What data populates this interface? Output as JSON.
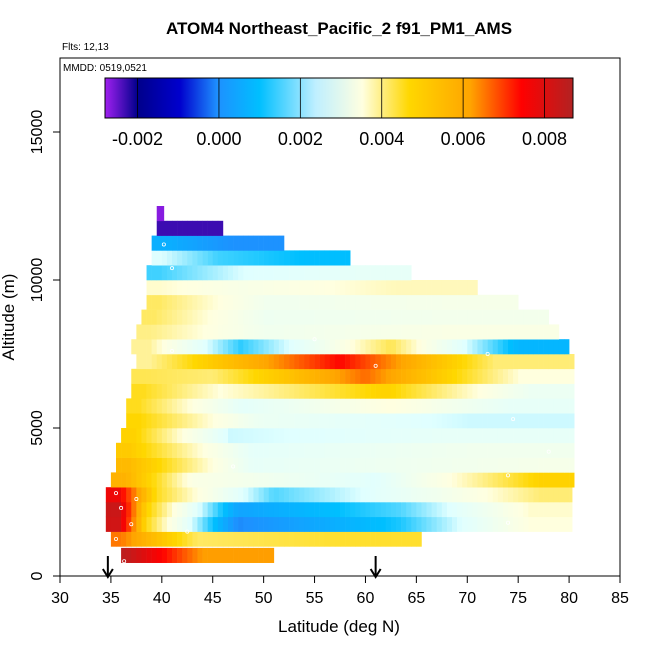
{
  "chart_data": {
    "type": "heatmap",
    "title": "ATOM4 Northeast_Pacific_2 f91_PM1_AMS",
    "flights_label": "Flts: 12,13",
    "dates_label": "MMDD: 0519,0521",
    "xlabel": "Latitude (deg N)",
    "ylabel": "Altitude (m)",
    "xlim": [
      30,
      85
    ],
    "ylim": [
      0,
      17500
    ],
    "x_ticks": [
      "30",
      "35",
      "40",
      "45",
      "50",
      "55",
      "60",
      "65",
      "70",
      "75",
      "80",
      "85"
    ],
    "y_ticks": [
      "0",
      "5000",
      "10000",
      "15000"
    ],
    "colorbar": {
      "min": -0.0028,
      "max": 0.0087,
      "tick_values": [
        -0.002,
        0.0,
        0.002,
        0.004,
        0.006,
        0.008
      ],
      "tick_labels": [
        "-0.002",
        "0.000",
        "0.002",
        "0.004",
        "0.006",
        "0.008"
      ],
      "colors": [
        "#a020f0",
        "#00008b",
        "#1e90ff",
        "#00bfff",
        "#e0ffff",
        "#ffffe0",
        "#ffd700",
        "#ffa500",
        "#ff0000",
        "#b22222"
      ]
    },
    "arrow_latitudes": [
      34.7,
      61.0
    ],
    "layers": [
      {
        "alt": 700,
        "segments": [
          [
            36.0,
            37.0,
            0.0085
          ],
          [
            37.0,
            51.0,
            0.0062
          ]
        ]
      },
      {
        "alt": 1250,
        "segments": [
          [
            35.0,
            37.0,
            0.0065
          ],
          [
            37.0,
            50.0,
            0.0043
          ],
          [
            50.0,
            65.5,
            0.0046
          ]
        ]
      },
      {
        "alt": 1750,
        "segments": [
          [
            34.5,
            37.0,
            0.0082
          ],
          [
            37.0,
            40.0,
            0.0048
          ],
          [
            40.0,
            55.0,
            -0.0003
          ],
          [
            55.0,
            72.0,
            0.0012
          ],
          [
            72.0,
            80.3,
            0.0036
          ]
        ]
      },
      {
        "alt": 2250,
        "segments": [
          [
            34.5,
            37.0,
            0.0083
          ],
          [
            37.0,
            40.0,
            0.005
          ],
          [
            40.0,
            55.0,
            0.0003
          ],
          [
            55.0,
            72.0,
            0.0015
          ],
          [
            72.0,
            80.3,
            0.0037
          ]
        ]
      },
      {
        "alt": 2750,
        "segments": [
          [
            34.5,
            37.0,
            0.0077
          ],
          [
            37.0,
            42.0,
            0.0047
          ],
          [
            42.0,
            60.0,
            0.0015
          ],
          [
            60.0,
            74.0,
            0.003
          ],
          [
            74.0,
            80.3,
            0.0042
          ]
        ]
      },
      {
        "alt": 3250,
        "segments": [
          [
            35.0,
            38.0,
            0.0058
          ],
          [
            38.0,
            48.0,
            0.0034
          ],
          [
            48.0,
            74.0,
            0.0024
          ],
          [
            74.0,
            80.5,
            0.005
          ]
        ]
      },
      {
        "alt": 3750,
        "segments": [
          [
            35.5,
            38.0,
            0.0056
          ],
          [
            38.0,
            60.0,
            0.0026
          ],
          [
            60.0,
            74.0,
            0.003
          ],
          [
            74.0,
            80.5,
            0.0032
          ]
        ]
      },
      {
        "alt": 4250,
        "segments": [
          [
            35.5,
            38.0,
            0.0052
          ],
          [
            38.0,
            60.0,
            0.0025
          ],
          [
            60.0,
            80.5,
            0.003
          ]
        ]
      },
      {
        "alt": 4750,
        "segments": [
          [
            36.0,
            38.5,
            0.005
          ],
          [
            38.5,
            55.0,
            0.0022
          ],
          [
            55.0,
            80.5,
            0.0026
          ]
        ]
      },
      {
        "alt": 5250,
        "segments": [
          [
            36.5,
            39.0,
            0.0049
          ],
          [
            39.0,
            60.0,
            0.0028
          ],
          [
            60.0,
            80.5,
            0.0022
          ]
        ]
      },
      {
        "alt": 5750,
        "segments": [
          [
            36.5,
            39.0,
            0.0047
          ],
          [
            39.0,
            57.0,
            0.0025
          ],
          [
            57.0,
            68.0,
            0.0036
          ],
          [
            68.0,
            80.5,
            0.0026
          ]
        ]
      },
      {
        "alt": 6250,
        "segments": [
          [
            37.0,
            39.5,
            0.0047
          ],
          [
            39.5,
            52.0,
            0.0036
          ],
          [
            52.0,
            72.0,
            0.005
          ],
          [
            72.0,
            80.5,
            0.0028
          ]
        ]
      },
      {
        "alt": 6750,
        "segments": [
          [
            37.0,
            40.0,
            0.0044
          ],
          [
            40.0,
            50.0,
            0.0042
          ],
          [
            50.0,
            70.0,
            0.0066
          ],
          [
            70.0,
            80.5,
            0.0036
          ]
        ]
      },
      {
        "alt": 7250,
        "segments": [
          [
            37.5,
            40.0,
            0.004
          ],
          [
            40.0,
            50.0,
            0.0052
          ],
          [
            50.0,
            65.0,
            0.0074
          ],
          [
            65.0,
            80.5,
            0.0042
          ]
        ]
      },
      {
        "alt": 7750,
        "segments": [
          [
            37.0,
            40.5,
            0.004
          ],
          [
            40.5,
            55.0,
            0.0013
          ],
          [
            55.0,
            70.0,
            0.0044
          ],
          [
            70.0,
            80.0,
            0.0008
          ]
        ]
      },
      {
        "alt": 8250,
        "segments": [
          [
            37.5,
            40.5,
            0.0041
          ],
          [
            40.5,
            60.0,
            0.003
          ],
          [
            60.0,
            79.0,
            0.0034
          ]
        ]
      },
      {
        "alt": 8750,
        "segments": [
          [
            38.0,
            40.5,
            0.0043
          ],
          [
            40.5,
            60.0,
            0.0029
          ],
          [
            60.0,
            78.0,
            0.0031
          ]
        ]
      },
      {
        "alt": 9250,
        "segments": [
          [
            38.5,
            41.0,
            0.0043
          ],
          [
            41.0,
            60.0,
            0.003
          ],
          [
            60.0,
            75.0,
            0.0032
          ]
        ]
      },
      {
        "alt": 9750,
        "segments": [
          [
            38.5,
            41.0,
            0.0037
          ],
          [
            41.0,
            55.0,
            0.0033
          ],
          [
            55.0,
            71.0,
            0.0038
          ]
        ]
      },
      {
        "alt": 10250,
        "segments": [
          [
            38.5,
            41.0,
            0.0014
          ],
          [
            41.0,
            55.0,
            0.0023
          ],
          [
            55.0,
            64.5,
            0.0026
          ]
        ]
      },
      {
        "alt": 10750,
        "segments": [
          [
            39.0,
            41.0,
            0.0023
          ],
          [
            41.0,
            50.0,
            0.0014
          ],
          [
            50.0,
            58.5,
            0.001
          ]
        ]
      },
      {
        "alt": 11250,
        "segments": [
          [
            39.0,
            42.0,
            0.0006
          ],
          [
            42.0,
            52.0,
            -0.0002
          ]
        ]
      },
      {
        "alt": 11750,
        "segments": [
          [
            39.5,
            46.0,
            -0.002
          ]
        ]
      },
      {
        "alt": 12250,
        "segments": [
          [
            39.5,
            40.2,
            -0.0026
          ]
        ]
      }
    ]
  }
}
